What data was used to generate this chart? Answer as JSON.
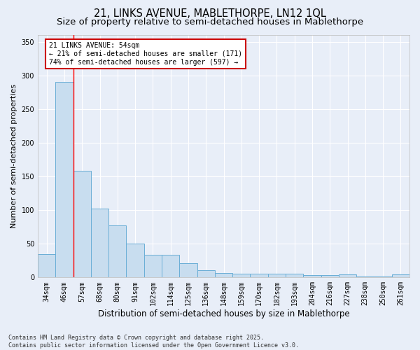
{
  "title_line1": "21, LINKS AVENUE, MABLETHORPE, LN12 1QL",
  "title_line2": "Size of property relative to semi-detached houses in Mablethorpe",
  "xlabel": "Distribution of semi-detached houses by size in Mablethorpe",
  "ylabel": "Number of semi-detached properties",
  "categories": [
    "34sqm",
    "46sqm",
    "57sqm",
    "68sqm",
    "80sqm",
    "91sqm",
    "102sqm",
    "114sqm",
    "125sqm",
    "136sqm",
    "148sqm",
    "159sqm",
    "170sqm",
    "182sqm",
    "193sqm",
    "204sqm",
    "216sqm",
    "227sqm",
    "238sqm",
    "250sqm",
    "261sqm"
  ],
  "values": [
    35,
    290,
    158,
    102,
    77,
    50,
    34,
    34,
    21,
    11,
    7,
    6,
    6,
    6,
    6,
    3,
    3,
    5,
    1,
    1,
    4
  ],
  "bar_color": "#c8ddef",
  "bar_edge_color": "#6aaed6",
  "red_line_x": 1.5,
  "annotation_text": "21 LINKS AVENUE: 54sqm\n← 21% of semi-detached houses are smaller (171)\n74% of semi-detached houses are larger (597) →",
  "annotation_box_color": "#ffffff",
  "annotation_box_edge": "#cc0000",
  "annotation_fontsize": 7.0,
  "ylim": [
    0,
    360
  ],
  "yticks": [
    0,
    50,
    100,
    150,
    200,
    250,
    300,
    350
  ],
  "background_color": "#e8eef8",
  "plot_background": "#e8eef8",
  "grid_color": "#ffffff",
  "footnote": "Contains HM Land Registry data © Crown copyright and database right 2025.\nContains public sector information licensed under the Open Government Licence v3.0.",
  "title_fontsize": 10.5,
  "subtitle_fontsize": 9.5,
  "xlabel_fontsize": 8.5,
  "ylabel_fontsize": 8.0,
  "tick_fontsize": 7.0
}
